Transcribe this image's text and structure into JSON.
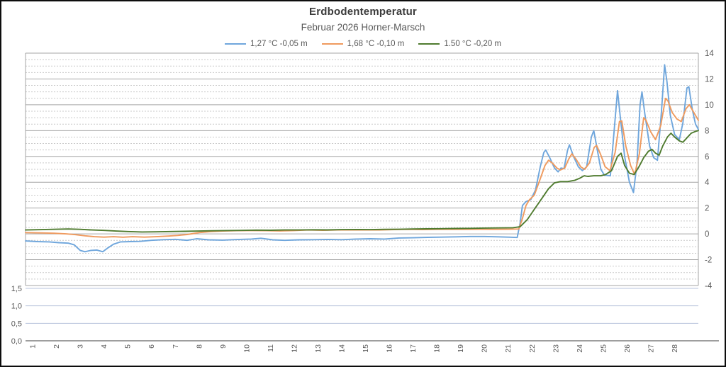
{
  "chart_data": {
    "type": "line",
    "title": "Erdbodentemperatur",
    "subtitle": "Februar 2026 Horner-Marsch",
    "legend_position": "top",
    "grid": {
      "major_horizontal": true,
      "minor_horizontal_dashed": true,
      "vertical": false
    },
    "x_axis": {
      "labels": [
        "1",
        "2",
        "3",
        "4",
        "5",
        "6",
        "7",
        "8",
        "9",
        "10",
        "11",
        "12",
        "13",
        "14",
        "15",
        "16",
        "17",
        "18",
        "19",
        "20",
        "21",
        "22",
        "23",
        "24",
        "25",
        "26",
        "27",
        "28"
      ],
      "range": [
        0.7,
        29.0
      ],
      "label_rotation_deg": -90
    },
    "y_axis_right": {
      "ticks": [
        "14",
        "12",
        "10",
        "8",
        "6",
        "4",
        "2",
        "0",
        "-2",
        "-4"
      ],
      "range": [
        -4,
        14
      ],
      "major_step": 2,
      "minor_step": 0.5
    },
    "y_axis_secondary_left": {
      "ticks": [
        "1,5",
        "1,0",
        "0,5",
        "0,0"
      ],
      "tick_values": [
        1.5,
        1.0,
        0.5,
        0.0
      ],
      "range": [
        0,
        1.5
      ],
      "note_series_values": "no data plotted in lower band"
    },
    "colors": {
      "major_grid": "#a6a6a6",
      "minor_grid": "#c9c9c9",
      "secondary_grid": "#b7c3dc",
      "secondary_axis_line": "#7f7f7f",
      "axis_text": "#595959",
      "title_text": "#3b3b3b"
    },
    "series": [
      {
        "name": "1,27 °C -0,05 m",
        "color": "#6FA6DC",
        "depth_m": -0.05,
        "points": [
          [
            0.7,
            -0.55
          ],
          [
            1.2,
            -0.6
          ],
          [
            1.7,
            -0.62
          ],
          [
            2.1,
            -0.68
          ],
          [
            2.5,
            -0.72
          ],
          [
            2.75,
            -0.85
          ],
          [
            3.0,
            -1.28
          ],
          [
            3.2,
            -1.38
          ],
          [
            3.45,
            -1.28
          ],
          [
            3.7,
            -1.25
          ],
          [
            3.95,
            -1.38
          ],
          [
            4.15,
            -1.1
          ],
          [
            4.4,
            -0.8
          ],
          [
            4.7,
            -0.62
          ],
          [
            5.1,
            -0.6
          ],
          [
            5.5,
            -0.58
          ],
          [
            6.0,
            -0.5
          ],
          [
            6.5,
            -0.45
          ],
          [
            7.0,
            -0.42
          ],
          [
            7.5,
            -0.5
          ],
          [
            7.9,
            -0.38
          ],
          [
            8.4,
            -0.46
          ],
          [
            9.0,
            -0.48
          ],
          [
            9.6,
            -0.44
          ],
          [
            10.2,
            -0.4
          ],
          [
            10.6,
            -0.34
          ],
          [
            11.1,
            -0.46
          ],
          [
            11.6,
            -0.5
          ],
          [
            12.2,
            -0.46
          ],
          [
            12.8,
            -0.45
          ],
          [
            13.4,
            -0.43
          ],
          [
            14.0,
            -0.45
          ],
          [
            14.6,
            -0.4
          ],
          [
            15.2,
            -0.38
          ],
          [
            15.8,
            -0.4
          ],
          [
            16.4,
            -0.32
          ],
          [
            17.0,
            -0.3
          ],
          [
            17.6,
            -0.27
          ],
          [
            18.2,
            -0.25
          ],
          [
            18.8,
            -0.23
          ],
          [
            19.4,
            -0.2
          ],
          [
            20.0,
            -0.2
          ],
          [
            20.6,
            -0.23
          ],
          [
            21.1,
            -0.26
          ],
          [
            21.38,
            -0.28
          ],
          [
            21.5,
            0.8
          ],
          [
            21.6,
            2.2
          ],
          [
            21.75,
            2.5
          ],
          [
            21.95,
            2.65
          ],
          [
            22.15,
            3.4
          ],
          [
            22.35,
            5.2
          ],
          [
            22.5,
            6.3
          ],
          [
            22.58,
            6.5
          ],
          [
            22.75,
            5.9
          ],
          [
            22.95,
            5.1
          ],
          [
            23.1,
            4.8
          ],
          [
            23.22,
            5.1
          ],
          [
            23.35,
            5.05
          ],
          [
            23.5,
            6.5
          ],
          [
            23.58,
            6.9
          ],
          [
            23.75,
            6.0
          ],
          [
            23.95,
            5.2
          ],
          [
            24.12,
            4.9
          ],
          [
            24.3,
            5.2
          ],
          [
            24.5,
            7.5
          ],
          [
            24.6,
            8.0
          ],
          [
            24.72,
            6.8
          ],
          [
            24.9,
            5.0
          ],
          [
            25.05,
            4.55
          ],
          [
            25.3,
            4.5
          ],
          [
            25.48,
            8.5
          ],
          [
            25.6,
            11.1
          ],
          [
            25.72,
            9.0
          ],
          [
            25.9,
            6.0
          ],
          [
            26.1,
            4.0
          ],
          [
            26.27,
            3.2
          ],
          [
            26.42,
            5.5
          ],
          [
            26.55,
            10.0
          ],
          [
            26.63,
            11.0
          ],
          [
            26.75,
            9.3
          ],
          [
            26.95,
            6.8
          ],
          [
            27.12,
            5.9
          ],
          [
            27.28,
            5.7
          ],
          [
            27.45,
            9.5
          ],
          [
            27.58,
            13.1
          ],
          [
            27.68,
            11.8
          ],
          [
            27.82,
            9.2
          ],
          [
            28.0,
            7.7
          ],
          [
            28.2,
            7.3
          ],
          [
            28.35,
            8.6
          ],
          [
            28.52,
            11.3
          ],
          [
            28.6,
            11.4
          ],
          [
            28.75,
            9.6
          ],
          [
            28.88,
            8.5
          ],
          [
            29.0,
            8.1
          ]
        ]
      },
      {
        "name": "1,68 °C -0,10 m",
        "color": "#EF9A5E",
        "depth_m": -0.1,
        "points": [
          [
            0.7,
            0.1
          ],
          [
            1.3,
            0.08
          ],
          [
            1.9,
            0.05
          ],
          [
            2.4,
            0.0
          ],
          [
            2.8,
            -0.06
          ],
          [
            3.2,
            -0.15
          ],
          [
            3.6,
            -0.22
          ],
          [
            4.0,
            -0.25
          ],
          [
            4.4,
            -0.22
          ],
          [
            4.8,
            -0.26
          ],
          [
            5.2,
            -0.22
          ],
          [
            5.7,
            -0.25
          ],
          [
            6.2,
            -0.22
          ],
          [
            6.7,
            -0.17
          ],
          [
            7.1,
            -0.12
          ],
          [
            7.5,
            -0.05
          ],
          [
            8.0,
            0.1
          ],
          [
            8.5,
            0.18
          ],
          [
            9.0,
            0.22
          ],
          [
            9.6,
            0.25
          ],
          [
            10.2,
            0.26
          ],
          [
            10.8,
            0.25
          ],
          [
            11.4,
            0.23
          ],
          [
            12.0,
            0.26
          ],
          [
            12.6,
            0.3
          ],
          [
            13.2,
            0.28
          ],
          [
            13.8,
            0.3
          ],
          [
            14.4,
            0.31
          ],
          [
            15.0,
            0.3
          ],
          [
            15.6,
            0.31
          ],
          [
            16.2,
            0.33
          ],
          [
            16.8,
            0.35
          ],
          [
            17.4,
            0.33
          ],
          [
            18.0,
            0.35
          ],
          [
            18.6,
            0.35
          ],
          [
            19.2,
            0.35
          ],
          [
            19.8,
            0.36
          ],
          [
            20.4,
            0.35
          ],
          [
            21.0,
            0.36
          ],
          [
            21.45,
            0.38
          ],
          [
            21.6,
            1.2
          ],
          [
            21.75,
            2.2
          ],
          [
            21.9,
            2.65
          ],
          [
            22.1,
            3.0
          ],
          [
            22.3,
            4.0
          ],
          [
            22.55,
            5.3
          ],
          [
            22.7,
            5.7
          ],
          [
            22.85,
            5.5
          ],
          [
            23.05,
            5.1
          ],
          [
            23.2,
            4.95
          ],
          [
            23.38,
            5.1
          ],
          [
            23.55,
            5.8
          ],
          [
            23.68,
            6.2
          ],
          [
            23.85,
            5.8
          ],
          [
            24.05,
            5.2
          ],
          [
            24.22,
            5.0
          ],
          [
            24.42,
            5.5
          ],
          [
            24.62,
            6.7
          ],
          [
            24.72,
            6.85
          ],
          [
            24.88,
            6.2
          ],
          [
            25.08,
            5.2
          ],
          [
            25.28,
            4.9
          ],
          [
            25.5,
            6.3
          ],
          [
            25.68,
            8.7
          ],
          [
            25.78,
            8.75
          ],
          [
            25.95,
            6.8
          ],
          [
            26.15,
            5.3
          ],
          [
            26.32,
            4.6
          ],
          [
            26.52,
            6.2
          ],
          [
            26.7,
            9.0
          ],
          [
            26.8,
            8.8
          ],
          [
            27.0,
            7.9
          ],
          [
            27.2,
            7.3
          ],
          [
            27.42,
            8.4
          ],
          [
            27.62,
            10.5
          ],
          [
            27.72,
            10.3
          ],
          [
            27.9,
            9.4
          ],
          [
            28.1,
            8.9
          ],
          [
            28.28,
            8.7
          ],
          [
            28.48,
            9.7
          ],
          [
            28.62,
            10.0
          ],
          [
            28.78,
            9.5
          ],
          [
            29.0,
            8.8
          ]
        ]
      },
      {
        "name": "1.50 °C -0,20 m",
        "color": "#4F7B2F",
        "depth_m": -0.2,
        "points": [
          [
            0.7,
            0.3
          ],
          [
            1.4,
            0.33
          ],
          [
            2.0,
            0.36
          ],
          [
            2.5,
            0.38
          ],
          [
            3.0,
            0.35
          ],
          [
            3.5,
            0.3
          ],
          [
            4.0,
            0.27
          ],
          [
            4.5,
            0.22
          ],
          [
            5.0,
            0.18
          ],
          [
            5.6,
            0.15
          ],
          [
            6.2,
            0.16
          ],
          [
            6.8,
            0.18
          ],
          [
            7.4,
            0.2
          ],
          [
            8.0,
            0.22
          ],
          [
            8.6,
            0.24
          ],
          [
            9.2,
            0.26
          ],
          [
            9.8,
            0.27
          ],
          [
            10.4,
            0.29
          ],
          [
            11.0,
            0.28
          ],
          [
            11.6,
            0.3
          ],
          [
            12.2,
            0.3
          ],
          [
            12.8,
            0.32
          ],
          [
            13.4,
            0.31
          ],
          [
            14.0,
            0.33
          ],
          [
            14.6,
            0.34
          ],
          [
            15.2,
            0.33
          ],
          [
            15.8,
            0.35
          ],
          [
            16.4,
            0.36
          ],
          [
            17.0,
            0.38
          ],
          [
            17.6,
            0.39
          ],
          [
            18.2,
            0.4
          ],
          [
            18.8,
            0.42
          ],
          [
            19.4,
            0.43
          ],
          [
            20.0,
            0.45
          ],
          [
            20.6,
            0.46
          ],
          [
            21.2,
            0.48
          ],
          [
            21.5,
            0.55
          ],
          [
            21.8,
            1.1
          ],
          [
            22.1,
            1.9
          ],
          [
            22.4,
            2.7
          ],
          [
            22.7,
            3.5
          ],
          [
            22.95,
            3.95
          ],
          [
            23.2,
            4.05
          ],
          [
            23.5,
            4.05
          ],
          [
            23.8,
            4.15
          ],
          [
            24.0,
            4.3
          ],
          [
            24.2,
            4.5
          ],
          [
            24.35,
            4.45
          ],
          [
            24.6,
            4.5
          ],
          [
            24.9,
            4.5
          ],
          [
            25.1,
            4.6
          ],
          [
            25.35,
            4.9
          ],
          [
            25.6,
            6.0
          ],
          [
            25.75,
            6.25
          ],
          [
            25.9,
            5.3
          ],
          [
            26.1,
            4.7
          ],
          [
            26.3,
            4.6
          ],
          [
            26.5,
            5.2
          ],
          [
            26.7,
            5.9
          ],
          [
            26.9,
            6.4
          ],
          [
            27.05,
            6.55
          ],
          [
            27.2,
            6.25
          ],
          [
            27.35,
            6.1
          ],
          [
            27.5,
            6.8
          ],
          [
            27.7,
            7.5
          ],
          [
            27.85,
            7.8
          ],
          [
            28.0,
            7.5
          ],
          [
            28.2,
            7.2
          ],
          [
            28.35,
            7.1
          ],
          [
            28.5,
            7.4
          ],
          [
            28.7,
            7.8
          ],
          [
            28.9,
            7.95
          ],
          [
            29.0,
            8.0
          ]
        ]
      }
    ]
  }
}
